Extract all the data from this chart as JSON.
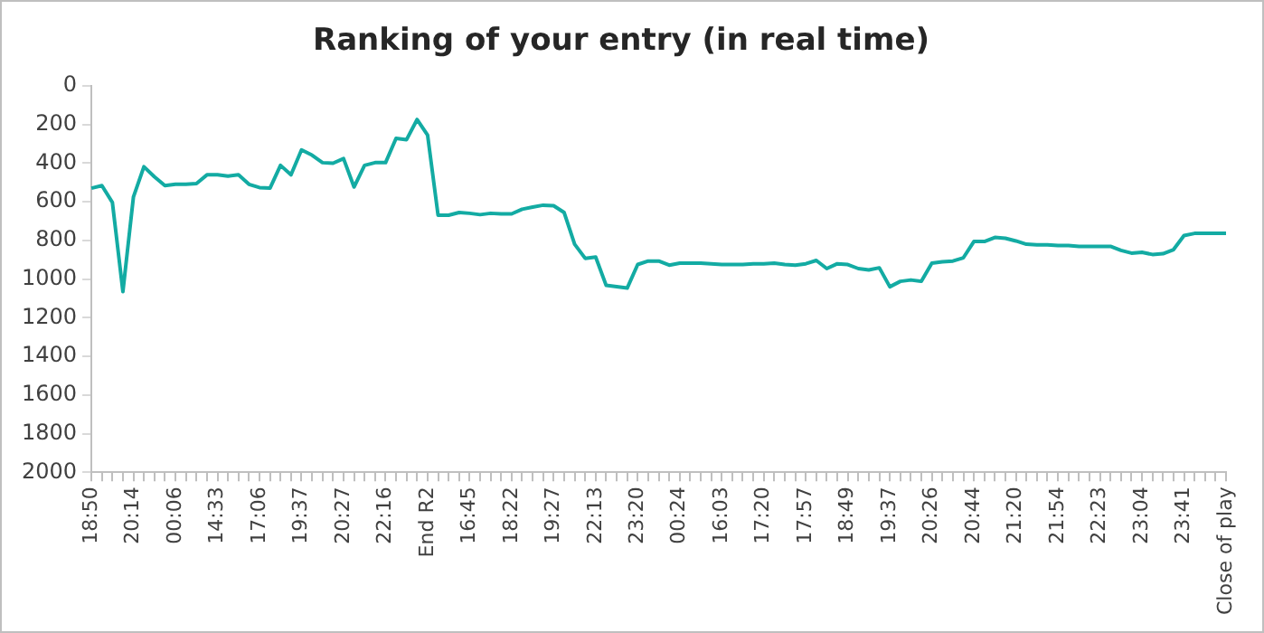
{
  "chart_data": {
    "type": "line",
    "title": "Ranking of your entry (in real time)",
    "categories": [
      "18:50",
      null,
      null,
      null,
      "20:14",
      null,
      null,
      null,
      "00:06",
      null,
      null,
      null,
      "14:33",
      null,
      null,
      null,
      "17:06",
      null,
      null,
      null,
      "19:37",
      null,
      null,
      null,
      "20:27",
      null,
      null,
      null,
      "22:16",
      null,
      null,
      null,
      "End R2",
      null,
      null,
      null,
      "16:45",
      null,
      null,
      null,
      "18:22",
      null,
      null,
      null,
      "19:27",
      null,
      null,
      null,
      "22:13",
      null,
      null,
      null,
      "23:20",
      null,
      null,
      null,
      "00:24",
      null,
      null,
      null,
      "16:03",
      null,
      null,
      null,
      "17:20",
      null,
      null,
      null,
      "17:57",
      null,
      null,
      null,
      "18:49",
      null,
      null,
      null,
      "19:37",
      null,
      null,
      null,
      "20:26",
      null,
      null,
      null,
      "20:44",
      null,
      null,
      null,
      "21:20",
      null,
      null,
      null,
      "21:54",
      null,
      null,
      null,
      "22:23",
      null,
      null,
      null,
      "23:04",
      null,
      null,
      null,
      "23:41",
      null,
      null,
      null,
      "Close of play"
    ],
    "series": [
      {
        "color": "#13aba3",
        "values": [
          530,
          517,
          604,
          1065,
          576,
          419,
          471,
          517,
          510,
          510,
          506,
          461,
          461,
          468,
          461,
          510,
          527,
          530,
          412,
          461,
          332,
          359,
          398,
          401,
          377,
          524,
          412,
          398,
          398,
          272,
          279,
          175,
          255,
          670,
          670,
          656,
          660,
          667,
          660,
          663,
          663,
          639,
          628,
          618,
          621,
          656,
          820,
          893,
          886,
          1033,
          1040,
          1047,
          925,
          907,
          907,
          928,
          918,
          918,
          918,
          921,
          925,
          925,
          925,
          921,
          921,
          918,
          925,
          928,
          921,
          904,
          946,
          921,
          925,
          946,
          953,
          942,
          1040,
          1012,
          1005,
          1012,
          918,
          911,
          907,
          890,
          806,
          806,
          785,
          789,
          803,
          820,
          823,
          823,
          827,
          827,
          831,
          831,
          831,
          831,
          852,
          866,
          862,
          873,
          869,
          848,
          775,
          764,
          764,
          764,
          764
        ]
      }
    ],
    "ylim": [
      2000,
      0
    ],
    "yticks": [
      0,
      200,
      400,
      600,
      800,
      1000,
      1200,
      1400,
      1600,
      1800,
      2000
    ],
    "grid": false,
    "legend": false,
    "marker": "none",
    "line_style": "solid"
  }
}
